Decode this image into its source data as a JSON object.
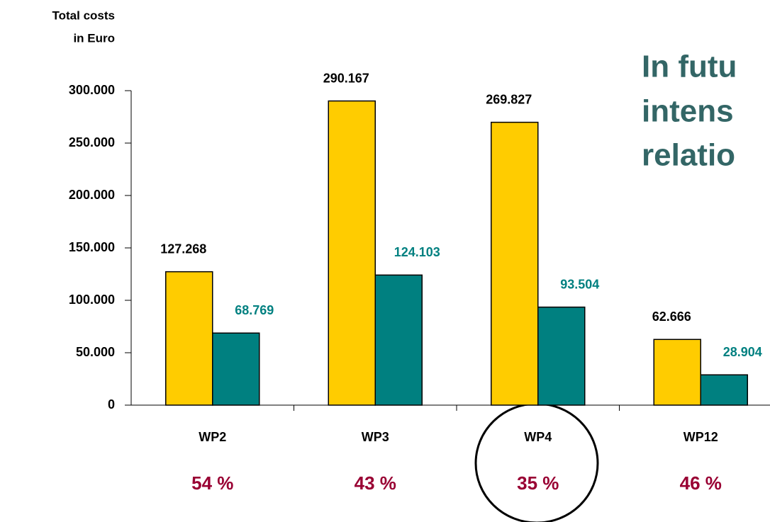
{
  "chart_data": {
    "type": "bar",
    "title_lines": [
      "In futu",
      "intens",
      "relatio"
    ],
    "y_axis_label_lines": [
      "Total costs",
      "in Euro"
    ],
    "categories": [
      "WP2",
      "WP3",
      "WP4",
      "WP12"
    ],
    "shares": [
      "54 %",
      "43 %",
      "35 %",
      "46 %"
    ],
    "series": [
      {
        "color": "#ffcc00",
        "values": [
          127268,
          290167,
          269827,
          62666
        ],
        "value_labels": [
          "127.268",
          "290.167",
          "269.827",
          "62.666"
        ],
        "label_color": "#000000"
      },
      {
        "color": "#008080",
        "values": [
          68769,
          124103,
          93504,
          28904
        ],
        "value_labels": [
          "68.769",
          "124.103",
          "93.504",
          "28.904"
        ],
        "label_color": "#008080"
      }
    ],
    "ylim": [
      0,
      300000
    ],
    "yticks": [
      0,
      {
        "value": 50000,
        "label": "50.000"
      },
      {
        "value": 100000,
        "label": "100.000"
      },
      {
        "value": 150000,
        "label": "150.000"
      },
      {
        "value": 200000,
        "label": "200.000"
      },
      {
        "value": 250000,
        "label": "250.000"
      },
      {
        "value": 300000,
        "label": "300.000"
      }
    ]
  }
}
